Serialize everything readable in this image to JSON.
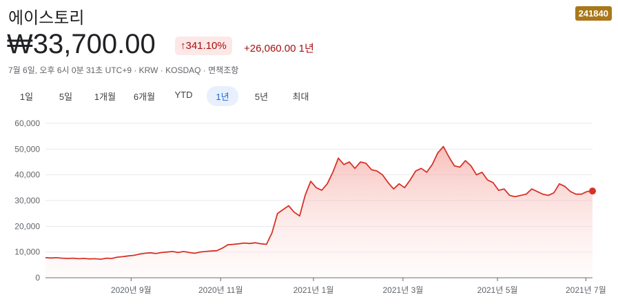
{
  "header": {
    "name": "에이스토리",
    "ticker": "241840",
    "price": "₩33,700.00",
    "change_pct": "341.10%",
    "change_abs": "+26,060.00",
    "change_period": "1년",
    "subtitle": "7월 6일, 오후 6시 0분 31초 UTC+9 · KRW · KOSDAQ · 면책조항"
  },
  "tabs": [
    "1일",
    "5일",
    "1개월",
    "6개월",
    "YTD",
    "1년",
    "5년",
    "최대"
  ],
  "selected_tab": 5,
  "chart_data": {
    "type": "line",
    "series": [
      {
        "color": "#d93025",
        "values": [
          7800,
          7700,
          7800,
          7600,
          7500,
          7600,
          7400,
          7500,
          7300,
          7400,
          7200,
          7600,
          7500,
          8000,
          8200,
          8500,
          8700,
          9200,
          9500,
          9700,
          9400,
          9800,
          10000,
          10200,
          9800,
          10200,
          9800,
          9500,
          10000,
          10200,
          10400,
          10500,
          11500,
          12800,
          13000,
          13200,
          13500,
          13300,
          13600,
          13200,
          13000,
          17500,
          25000,
          26500,
          28000,
          25500,
          24000,
          32000,
          37500,
          35000,
          34000,
          36500,
          41000,
          46500,
          44000,
          45000,
          42500,
          45000,
          44500,
          42000,
          41500,
          40000,
          37000,
          34500,
          36500,
          35000,
          38000,
          41500,
          42500,
          41000,
          44000,
          48500,
          51000,
          47000,
          43500,
          43000,
          45500,
          43500,
          40000,
          41000,
          38000,
          37000,
          34000,
          34500,
          32000,
          31500,
          32000,
          32500,
          34500,
          33500,
          32500,
          32000,
          33000,
          36500,
          35500,
          33500,
          32500,
          32500,
          33500,
          33700
        ]
      }
    ],
    "xlim": [
      0,
      99
    ],
    "xticks": [
      {
        "value": 15.5,
        "label": "2020년 9월"
      },
      {
        "value": 31.7,
        "label": "2020년 11월"
      },
      {
        "value": 48.5,
        "label": "2021년 1월"
      },
      {
        "value": 64.7,
        "label": "2021년 3월"
      },
      {
        "value": 81.8,
        "label": "2021년 5월"
      },
      {
        "value": 97.8,
        "label": "2021년 7월"
      }
    ],
    "ylim": [
      0,
      60000
    ],
    "yticks": [
      0,
      {
        "value": 10000,
        "label": "10,000"
      },
      {
        "value": 20000,
        "label": "20,000"
      },
      {
        "value": 30000,
        "label": "30,000"
      },
      {
        "value": 40000,
        "label": "40,000"
      },
      {
        "value": 50000,
        "label": "50,000"
      },
      {
        "value": 60000,
        "label": "60,000"
      }
    ],
    "grid": true
  }
}
